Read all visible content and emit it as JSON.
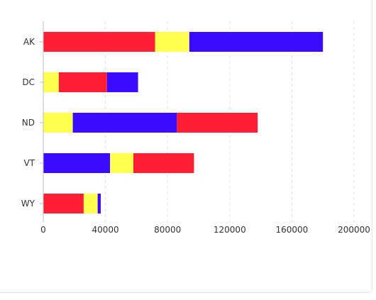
{
  "chart_data": {
    "type": "bar",
    "orientation": "horizontal",
    "stacked": true,
    "title": "",
    "xlabel": "",
    "ylabel": "",
    "categories": [
      "AK",
      "DC",
      "ND",
      "VT",
      "WY"
    ],
    "xlim": [
      0,
      200000
    ],
    "xticks": [
      0,
      40000,
      80000,
      120000,
      160000,
      200000
    ],
    "xtick_labels": [
      "0",
      "40000",
      "80000",
      "120000",
      "160000",
      "200000"
    ],
    "grid": "vertical-dashed",
    "legend": "none",
    "colors": {
      "red": "#ff1f35",
      "yellow": "#ffff4d",
      "blue": "#3a0bff"
    },
    "segments": [
      [
        {
          "color": "red",
          "value": 72000
        },
        {
          "color": "yellow",
          "value": 22000
        },
        {
          "color": "blue",
          "value": 86000
        }
      ],
      [
        {
          "color": "yellow",
          "value": 10000
        },
        {
          "color": "red",
          "value": 31000
        },
        {
          "color": "blue",
          "value": 20000
        }
      ],
      [
        {
          "color": "yellow",
          "value": 19000
        },
        {
          "color": "blue",
          "value": 67000
        },
        {
          "color": "red",
          "value": 52000
        }
      ],
      [
        {
          "color": "blue",
          "value": 43000
        },
        {
          "color": "yellow",
          "value": 15000
        },
        {
          "color": "red",
          "value": 39000
        }
      ],
      [
        {
          "color": "red",
          "value": 26000
        },
        {
          "color": "yellow",
          "value": 9000
        },
        {
          "color": "blue",
          "value": 2000
        }
      ]
    ]
  }
}
